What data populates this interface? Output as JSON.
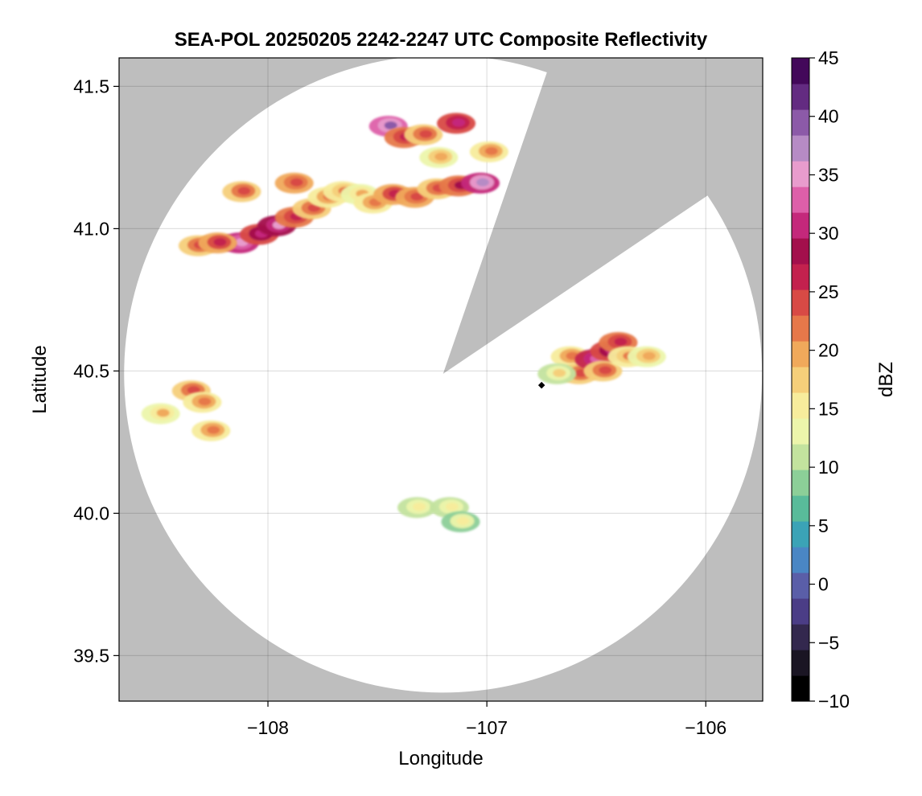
{
  "chart_data": {
    "type": "heatmap",
    "title": "SEA-POL 20250205 2242-2247 UTC Composite Reflectivity",
    "xlabel": "Longitude",
    "ylabel": "Latitude",
    "xlim": [
      -108.68,
      -105.74
    ],
    "ylim": [
      39.34,
      41.6
    ],
    "xticks": [
      -108,
      -107,
      -106
    ],
    "xtick_labels": [
      "−108",
      "−107",
      "−106"
    ],
    "yticks": [
      39.5,
      40.0,
      40.5,
      41.0,
      41.5
    ],
    "ytick_labels": [
      "39.5",
      "40.0",
      "40.5",
      "41.0",
      "41.5"
    ],
    "grid": true,
    "colorbar": {
      "label": "dBZ",
      "min": -10,
      "max": 45,
      "ticks": [
        -10,
        -5,
        0,
        5,
        10,
        15,
        20,
        25,
        30,
        35,
        40,
        45
      ],
      "tick_labels": [
        "−10",
        "−5",
        "0",
        "5",
        "10",
        "15",
        "20",
        "25",
        "30",
        "35",
        "40",
        "45"
      ],
      "colormap": [
        "#000000",
        "#1a1523",
        "#33284e",
        "#4b3d86",
        "#5a5ea8",
        "#4a86c4",
        "#3ba3b6",
        "#59bb9a",
        "#8ccf98",
        "#c3e39e",
        "#ecf5ab",
        "#f7ec9c",
        "#f5cf7a",
        "#f0a95b",
        "#e6784a",
        "#d84a45",
        "#c3214e",
        "#a30f4c",
        "#c4287b",
        "#dd5fa9",
        "#e89ccd",
        "#b68bc5",
        "#8c5aa8",
        "#632b81",
        "#43085a"
      ]
    },
    "radar_site": {
      "lon": -106.75,
      "lat": 40.45
    },
    "coverage": {
      "center_lon": -107.2,
      "center_lat": 40.49,
      "radius_deg_lat": 1.12,
      "blocked_sector_bearings_deg": [
        19,
        56
      ]
    },
    "echoes": [
      {
        "lon": -108.13,
        "lat": 40.95,
        "dbz": 36
      },
      {
        "lon": -108.04,
        "lat": 40.98,
        "dbz": 31
      },
      {
        "lon": -107.96,
        "lat": 41.01,
        "dbz": 34
      },
      {
        "lon": -107.88,
        "lat": 41.04,
        "dbz": 27
      },
      {
        "lon": -107.8,
        "lat": 41.07,
        "dbz": 24
      },
      {
        "lon": -107.73,
        "lat": 41.11,
        "dbz": 22
      },
      {
        "lon": -107.66,
        "lat": 41.13,
        "dbz": 21
      },
      {
        "lon": -107.58,
        "lat": 41.12,
        "dbz": 19
      },
      {
        "lon": -108.32,
        "lat": 40.94,
        "dbz": 24
      },
      {
        "lon": -108.23,
        "lat": 40.95,
        "dbz": 26
      },
      {
        "lon": -107.52,
        "lat": 41.09,
        "dbz": 22
      },
      {
        "lon": -107.43,
        "lat": 41.12,
        "dbz": 26
      },
      {
        "lon": -107.33,
        "lat": 41.11,
        "dbz": 25
      },
      {
        "lon": -107.23,
        "lat": 41.14,
        "dbz": 24
      },
      {
        "lon": -107.13,
        "lat": 41.15,
        "dbz": 28
      },
      {
        "lon": -107.03,
        "lat": 41.16,
        "dbz": 37
      },
      {
        "lon": -106.99,
        "lat": 41.27,
        "dbz": 22
      },
      {
        "lon": -107.45,
        "lat": 41.36,
        "dbz": 39
      },
      {
        "lon": -107.38,
        "lat": 41.32,
        "dbz": 27
      },
      {
        "lon": -107.29,
        "lat": 41.33,
        "dbz": 24
      },
      {
        "lon": -107.14,
        "lat": 41.37,
        "dbz": 30
      },
      {
        "lon": -107.22,
        "lat": 41.25,
        "dbz": 20
      },
      {
        "lon": -107.88,
        "lat": 41.16,
        "dbz": 25
      },
      {
        "lon": -108.12,
        "lat": 41.13,
        "dbz": 24
      },
      {
        "lon": -108.35,
        "lat": 40.43,
        "dbz": 24
      },
      {
        "lon": -108.3,
        "lat": 40.39,
        "dbz": 22
      },
      {
        "lon": -108.26,
        "lat": 40.29,
        "dbz": 22
      },
      {
        "lon": -108.49,
        "lat": 40.35,
        "dbz": 19
      },
      {
        "lon": -106.62,
        "lat": 40.55,
        "dbz": 22
      },
      {
        "lon": -106.58,
        "lat": 40.49,
        "dbz": 24
      },
      {
        "lon": -106.51,
        "lat": 40.54,
        "dbz": 33
      },
      {
        "lon": -106.44,
        "lat": 40.57,
        "dbz": 31
      },
      {
        "lon": -106.4,
        "lat": 40.6,
        "dbz": 27
      },
      {
        "lon": -106.47,
        "lat": 40.5,
        "dbz": 24
      },
      {
        "lon": -106.36,
        "lat": 40.55,
        "dbz": 21
      },
      {
        "lon": -106.27,
        "lat": 40.55,
        "dbz": 20
      },
      {
        "lon": -106.68,
        "lat": 40.49,
        "dbz": 17
      },
      {
        "lon": -107.32,
        "lat": 40.02,
        "dbz": 16
      },
      {
        "lon": -107.17,
        "lat": 40.02,
        "dbz": 16
      },
      {
        "lon": -107.12,
        "lat": 39.97,
        "dbz": 15
      }
    ]
  }
}
